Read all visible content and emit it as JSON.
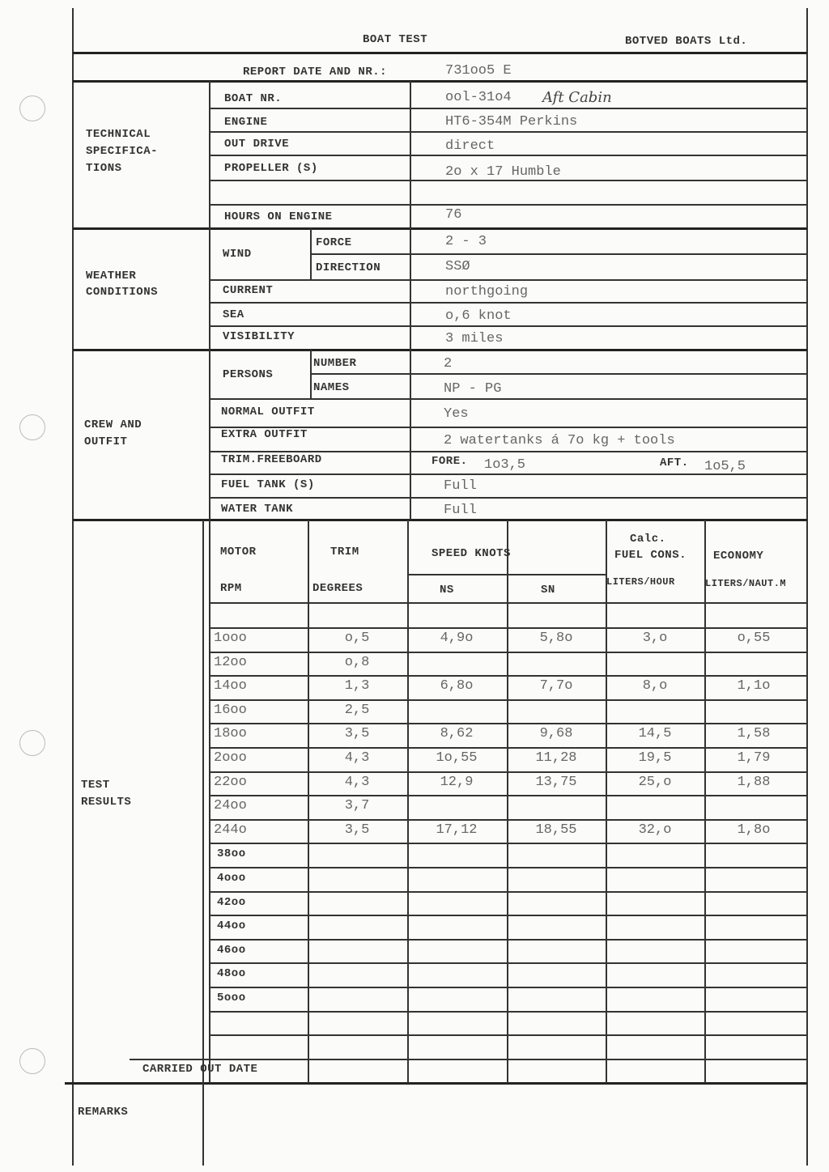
{
  "header": {
    "title": "BOAT TEST",
    "company": "BOTVED BOATS Ltd.",
    "report_label": "REPORT DATE AND NR.:",
    "report_value": "731oo5 E"
  },
  "technical": {
    "section": "TECHNICAL SPECIFICA- TIONS",
    "boat_nr": {
      "label": "BOAT NR.",
      "value": "ool-31o4",
      "note": "Aft Cabin"
    },
    "engine": {
      "label": "ENGINE",
      "value": "HT6-354M Perkins"
    },
    "out_drive": {
      "label": "OUT DRIVE",
      "value": "direct"
    },
    "propeller": {
      "label": "PROPELLER (S)",
      "value": "2o x 17 Humble"
    },
    "hours": {
      "label": "HOURS ON ENGINE",
      "value": "76"
    }
  },
  "weather": {
    "section": "WEATHER CONDITIONS",
    "wind_label": "WIND",
    "force": {
      "label": "FORCE",
      "value": "2 - 3"
    },
    "direction": {
      "label": "DIRECTION",
      "value": "SSØ"
    },
    "current": {
      "label": "CURRENT",
      "value": "northgoing"
    },
    "sea": {
      "label": "SEA",
      "value": "o,6 knot"
    },
    "visibility": {
      "label": "VISIBILITY",
      "value": "3 miles"
    }
  },
  "crew": {
    "section": "CREW AND OUTFIT",
    "persons_label": "PERSONS",
    "number": {
      "label": "NUMBER",
      "value": "2"
    },
    "names": {
      "label": "NAMES",
      "value": "NP - PG"
    },
    "normal_outfit": {
      "label": "NORMAL OUTFIT",
      "value": "Yes"
    },
    "extra_outfit": {
      "label": "EXTRA OUTFIT",
      "value": "2 watertanks á 7o kg + tools"
    },
    "trim": {
      "label": "TRIM.FREEBOARD",
      "fore_label": "FORE.",
      "fore_value": "1o3,5",
      "aft_label": "AFT.",
      "aft_value": "1o5,5"
    },
    "fuel_tank": {
      "label": "FUEL TANK (S)",
      "value": "Full"
    },
    "water_tank": {
      "label": "WATER TANK",
      "value": "Full"
    }
  },
  "test": {
    "section": "TEST RESULTS",
    "headers": {
      "motor": "MOTOR",
      "rpm": "RPM",
      "trim": "TRIM",
      "degrees": "DEGREES",
      "speed": "SPEED KNOTS",
      "ns": "NS",
      "sn": "SN",
      "calc": "Calc.",
      "fuel_cons": "FUEL CONS.",
      "liters_hour": "LITERS/HOUR",
      "economy": "ECONOMY",
      "liters_naut": "LITERS/NAUT.M"
    },
    "rows": [
      {
        "rpm": "1ooo",
        "trim": "o,5",
        "ns": "4,9o",
        "sn": "5,8o",
        "fuel": "3,o",
        "economy": "o,55"
      },
      {
        "rpm": "12oo",
        "trim": "o,8",
        "ns": "",
        "sn": "",
        "fuel": "",
        "economy": ""
      },
      {
        "rpm": "14oo",
        "trim": "1,3",
        "ns": "6,8o",
        "sn": "7,7o",
        "fuel": "8,o",
        "economy": "1,1o"
      },
      {
        "rpm": "16oo",
        "trim": "2,5",
        "ns": "",
        "sn": "",
        "fuel": "",
        "economy": ""
      },
      {
        "rpm": "18oo",
        "trim": "3,5",
        "ns": "8,62",
        "sn": "9,68",
        "fuel": "14,5",
        "economy": "1,58"
      },
      {
        "rpm": "2ooo",
        "trim": "4,3",
        "ns": "1o,55",
        "sn": "11,28",
        "fuel": "19,5",
        "economy": "1,79"
      },
      {
        "rpm": "22oo",
        "trim": "4,3",
        "ns": "12,9",
        "sn": "13,75",
        "fuel": "25,o",
        "economy": "1,88"
      },
      {
        "rpm": "24oo",
        "trim": "3,7",
        "ns": "",
        "sn": "",
        "fuel": "",
        "economy": ""
      },
      {
        "rpm": "244o",
        "trim": "3,5",
        "ns": "17,12",
        "sn": "18,55",
        "fuel": "32,o",
        "economy": "1,8o"
      }
    ],
    "printed_rpm": [
      "38oo",
      "4ooo",
      "42oo",
      "44oo",
      "46oo",
      "48oo",
      "5ooo"
    ],
    "carried_out_label": "CARRIED OUT DATE"
  },
  "remarks": {
    "label": "REMARKS"
  }
}
